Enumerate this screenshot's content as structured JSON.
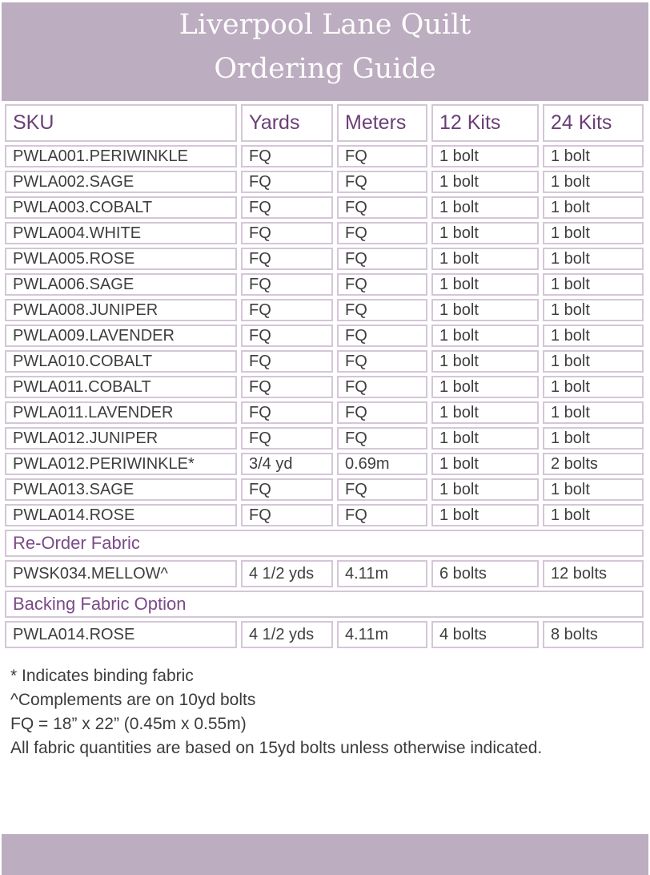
{
  "title": {
    "line1": "Liverpool Lane Quilt",
    "line2": "Ordering Guide"
  },
  "table": {
    "columns": [
      "SKU",
      "Yards",
      "Meters",
      "12 Kits",
      "24 Kits"
    ],
    "rows": [
      {
        "sku": "PWLA001.PERIWINKLE",
        "yards": "FQ",
        "meters": "FQ",
        "kits12": "1 bolt",
        "kits24": "1 bolt"
      },
      {
        "sku": "PWLA002.SAGE",
        "yards": "FQ",
        "meters": "FQ",
        "kits12": "1 bolt",
        "kits24": "1 bolt"
      },
      {
        "sku": "PWLA003.COBALT",
        "yards": "FQ",
        "meters": "FQ",
        "kits12": "1 bolt",
        "kits24": "1 bolt"
      },
      {
        "sku": "PWLA004.WHITE",
        "yards": "FQ",
        "meters": "FQ",
        "kits12": "1 bolt",
        "kits24": "1 bolt"
      },
      {
        "sku": "PWLA005.ROSE",
        "yards": "FQ",
        "meters": "FQ",
        "kits12": "1 bolt",
        "kits24": "1 bolt"
      },
      {
        "sku": "PWLA006.SAGE",
        "yards": "FQ",
        "meters": "FQ",
        "kits12": "1 bolt",
        "kits24": "1 bolt"
      },
      {
        "sku": "PWLA008.JUNIPER",
        "yards": "FQ",
        "meters": "FQ",
        "kits12": "1 bolt",
        "kits24": "1 bolt"
      },
      {
        "sku": "PWLA009.LAVENDER",
        "yards": "FQ",
        "meters": "FQ",
        "kits12": "1 bolt",
        "kits24": "1 bolt"
      },
      {
        "sku": "PWLA010.COBALT",
        "yards": "FQ",
        "meters": "FQ",
        "kits12": "1 bolt",
        "kits24": "1 bolt"
      },
      {
        "sku": "PWLA011.COBALT",
        "yards": "FQ",
        "meters": "FQ",
        "kits12": "1 bolt",
        "kits24": "1 bolt"
      },
      {
        "sku": "PWLA011.LAVENDER",
        "yards": "FQ",
        "meters": "FQ",
        "kits12": "1 bolt",
        "kits24": "1 bolt"
      },
      {
        "sku": "PWLA012.JUNIPER",
        "yards": "FQ",
        "meters": "FQ",
        "kits12": "1 bolt",
        "kits24": "1 bolt"
      },
      {
        "sku": "PWLA012.PERIWINKLE*",
        "yards": "3/4 yd",
        "meters": "0.69m",
        "kits12": "1 bolt",
        "kits24": "2 bolts"
      },
      {
        "sku": "PWLA013.SAGE",
        "yards": "FQ",
        "meters": "FQ",
        "kits12": "1 bolt",
        "kits24": "1 bolt"
      },
      {
        "sku": "PWLA014.ROSE",
        "yards": "FQ",
        "meters": "FQ",
        "kits12": "1 bolt",
        "kits24": "1 bolt"
      }
    ]
  },
  "sections": [
    {
      "label": "Re-Order Fabric",
      "rows": [
        {
          "sku": "PWSK034.MELLOW^",
          "yards": "4 1/2 yds",
          "meters": "4.11m",
          "kits12": "6 bolts",
          "kits24": "12 bolts"
        }
      ]
    },
    {
      "label": "Backing Fabric Option",
      "rows": [
        {
          "sku": "PWLA014.ROSE",
          "yards": "4 1/2 yds",
          "meters": "4.11m",
          "kits12": "4 bolts",
          "kits24": "8 bolts"
        }
      ]
    }
  ],
  "footnotes": [
    "* Indicates binding fabric",
    "^Complements are on 10yd bolts",
    "FQ = 18” x 22” (0.45m x 0.55m)",
    "All fabric quantities are based on 15yd bolts unless otherwise indicated."
  ],
  "colors": {
    "band_mauve": "#bcadc0",
    "header_text_purple": "#6b3e76",
    "section_text_purple": "#7b4a88",
    "cell_border": "#d4c6d7",
    "body_text": "#3e3e3e",
    "title_text": "#fdfcfd"
  }
}
